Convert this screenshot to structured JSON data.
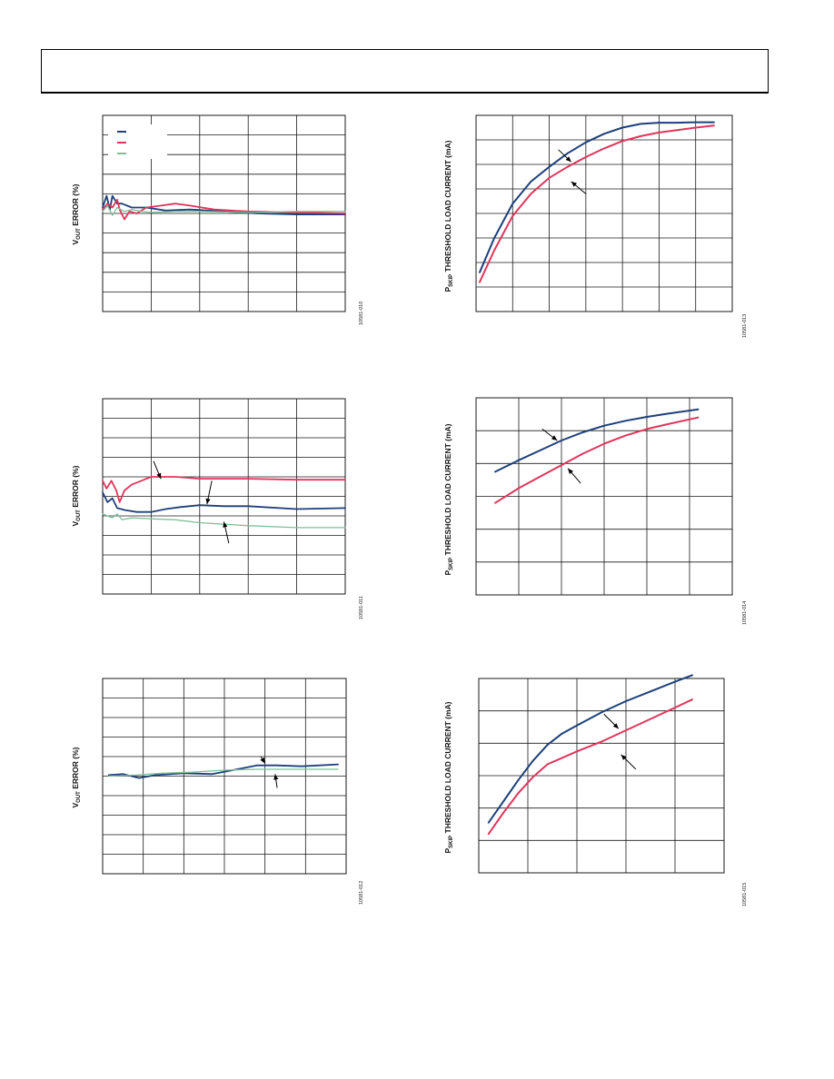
{
  "page": {
    "header_frame": ""
  },
  "colors": {
    "blue": "#1d3f7a",
    "red": "#e0345a",
    "green": "#7fbf9a",
    "grid": "#1a1a1a"
  },
  "chart_data": [
    {
      "id": "fig1",
      "type": "line",
      "fig_id": "10581-010",
      "ylabel_main": "V",
      "ylabel_sub": "OUT",
      "ylabel_tail": " ERROR (%)",
      "xlim": [
        0,
        5
      ],
      "ylim": [
        -5,
        5
      ],
      "grid": true,
      "legend": "top-left",
      "legend_swatches": [
        "blue",
        "red",
        "green"
      ],
      "series": [
        {
          "color": "blue",
          "x": [
            0,
            0.08,
            0.15,
            0.2,
            0.3,
            0.4,
            0.6,
            0.9,
            1.3,
            1.8,
            2.5,
            3.2,
            4.0,
            5.0
          ],
          "y": [
            0.3,
            0.9,
            0.2,
            0.9,
            0.5,
            0.5,
            0.3,
            0.3,
            0.15,
            0.2,
            0.1,
            0.0,
            -0.05,
            -0.05
          ]
        },
        {
          "color": "red",
          "x": [
            0,
            0.1,
            0.2,
            0.3,
            0.35,
            0.45,
            0.55,
            0.7,
            0.9,
            1.2,
            1.5,
            1.8,
            2.3,
            3.0,
            4.0,
            5.0
          ],
          "y": [
            0.2,
            0.5,
            0.3,
            0.7,
            0.2,
            -0.3,
            0.1,
            0.0,
            0.3,
            0.4,
            0.5,
            0.4,
            0.2,
            0.1,
            0.05,
            0.0
          ]
        },
        {
          "color": "green",
          "x": [
            0,
            0.1,
            0.2,
            0.3,
            0.45,
            0.6,
            0.8,
            1.0,
            1.5,
            2.0,
            3.0,
            4.0,
            5.0
          ],
          "y": [
            0.1,
            0.4,
            -0.1,
            0.3,
            0.1,
            0.2,
            0.1,
            0.05,
            0.1,
            0.1,
            0.05,
            0.1,
            0.1
          ]
        }
      ]
    },
    {
      "id": "fig2",
      "type": "line",
      "fig_id": "10581-011",
      "ylabel_main": "V",
      "ylabel_sub": "OUT",
      "ylabel_tail": " ERROR (%)",
      "xlim": [
        0,
        5
      ],
      "ylim": [
        -5,
        5
      ],
      "grid": true,
      "legend": "none",
      "series": [
        {
          "color": "red",
          "x": [
            0,
            0.08,
            0.18,
            0.28,
            0.35,
            0.45,
            0.6,
            0.8,
            1.0,
            1.5,
            2.0,
            3.0,
            4.0,
            5.0
          ],
          "y": [
            0.8,
            0.4,
            0.8,
            0.3,
            -0.3,
            0.3,
            0.6,
            0.8,
            1.0,
            1.0,
            0.9,
            0.9,
            0.85,
            0.85
          ]
        },
        {
          "color": "blue",
          "x": [
            0,
            0.1,
            0.2,
            0.3,
            0.45,
            0.7,
            1.0,
            1.3,
            1.6,
            2.0,
            2.5,
            3.0,
            4.0,
            5.0
          ],
          "y": [
            0.2,
            -0.3,
            -0.1,
            -0.6,
            -0.7,
            -0.8,
            -0.8,
            -0.65,
            -0.55,
            -0.45,
            -0.5,
            -0.5,
            -0.65,
            -0.6
          ]
        },
        {
          "color": "green",
          "x": [
            0,
            0.1,
            0.2,
            0.3,
            0.4,
            0.6,
            1.0,
            1.5,
            2.0,
            3.0,
            4.0,
            5.0
          ],
          "y": [
            -0.9,
            -1.0,
            -1.1,
            -0.9,
            -1.2,
            -1.1,
            -1.15,
            -1.2,
            -1.35,
            -1.5,
            -1.6,
            -1.6
          ]
        }
      ],
      "annotations": [
        {
          "x1": 1.05,
          "y1": 1.8,
          "x2": 1.2,
          "y2": 0.9
        },
        {
          "x1": 2.25,
          "y1": 0.8,
          "x2": 2.15,
          "y2": -0.4
        },
        {
          "x1": 2.6,
          "y1": -2.4,
          "x2": 2.5,
          "y2": -1.3
        }
      ]
    },
    {
      "id": "fig3",
      "type": "line",
      "fig_id": "10581-012",
      "ylabel_main": "V",
      "ylabel_sub": "OUT",
      "ylabel_tail": " ERROR (%)",
      "xlim": [
        0,
        6
      ],
      "ylim": [
        -5,
        5
      ],
      "grid": true,
      "legend": "none",
      "series": [
        {
          "color": "blue",
          "x": [
            0.15,
            0.5,
            0.9,
            1.3,
            2.0,
            2.7,
            3.2,
            3.8,
            4.3,
            4.9,
            5.8
          ],
          "y": [
            0.05,
            0.1,
            -0.1,
            0.05,
            0.15,
            0.1,
            0.3,
            0.55,
            0.55,
            0.5,
            0.6
          ]
        },
        {
          "color": "green",
          "x": [
            0.15,
            0.8,
            1.5,
            2.2,
            3.0,
            3.8,
            4.5,
            5.2,
            5.8
          ],
          "y": [
            0.0,
            0.05,
            0.15,
            0.2,
            0.3,
            0.35,
            0.35,
            0.35,
            0.35
          ]
        }
      ],
      "annotations": [
        {
          "x1": 3.9,
          "y1": 1.0,
          "x2": 4.0,
          "y2": 0.65
        },
        {
          "x1": 4.3,
          "y1": -0.6,
          "x2": 4.25,
          "y2": 0.1
        }
      ]
    },
    {
      "id": "fig4",
      "type": "line",
      "fig_id": "10581-013",
      "ylabel_main": "P",
      "ylabel_sub": "SKIP",
      "ylabel_tail": " THRESHOLD LOAD CURRENT (mA)",
      "xlim": [
        0,
        7
      ],
      "ylim": [
        0,
        8
      ],
      "grid": true,
      "legend": "none",
      "series": [
        {
          "color": "blue",
          "x": [
            0.1,
            0.5,
            1.0,
            1.5,
            2.0,
            2.5,
            3.0,
            3.5,
            4.0,
            4.5,
            5.0,
            5.5,
            6.0,
            6.5
          ],
          "y": [
            1.6,
            3.0,
            4.4,
            5.3,
            5.9,
            6.45,
            6.9,
            7.25,
            7.5,
            7.65,
            7.7,
            7.7,
            7.72,
            7.72
          ]
        },
        {
          "color": "red",
          "x": [
            0.1,
            0.5,
            1.0,
            1.5,
            2.0,
            2.5,
            3.0,
            3.5,
            4.0,
            4.5,
            5.0,
            5.5,
            6.0,
            6.5
          ],
          "y": [
            1.2,
            2.5,
            3.9,
            4.8,
            5.45,
            5.9,
            6.3,
            6.65,
            6.95,
            7.15,
            7.3,
            7.4,
            7.5,
            7.58
          ]
        }
      ],
      "annotations": [
        {
          "x1": 2.25,
          "y1": 6.6,
          "x2": 2.6,
          "y2": 6.1
        },
        {
          "x1": 3.0,
          "y1": 4.8,
          "x2": 2.6,
          "y2": 5.3
        }
      ]
    },
    {
      "id": "fig5",
      "type": "line",
      "fig_id": "10581-014",
      "ylabel_main": "P",
      "ylabel_sub": "SKIP",
      "ylabel_tail": " THRESHOLD LOAD CURRENT (mA)",
      "xlim": [
        0,
        6
      ],
      "ylim": [
        0,
        6
      ],
      "grid": true,
      "legend": "none",
      "series": [
        {
          "color": "blue",
          "x": [
            0.45,
            1.0,
            1.5,
            2.0,
            2.5,
            3.0,
            3.5,
            4.0,
            4.5,
            5.2
          ],
          "y": [
            3.75,
            4.1,
            4.4,
            4.7,
            4.95,
            5.15,
            5.3,
            5.42,
            5.52,
            5.65
          ]
        },
        {
          "color": "red",
          "x": [
            0.45,
            1.0,
            1.5,
            2.0,
            2.5,
            3.0,
            3.5,
            4.0,
            4.5,
            5.2
          ],
          "y": [
            2.8,
            3.25,
            3.6,
            3.95,
            4.3,
            4.6,
            4.85,
            5.05,
            5.2,
            5.4
          ]
        }
      ],
      "annotations": [
        {
          "x1": 1.55,
          "y1": 5.05,
          "x2": 1.9,
          "y2": 4.7
        },
        {
          "x1": 2.45,
          "y1": 3.4,
          "x2": 2.15,
          "y2": 3.85
        }
      ]
    },
    {
      "id": "fig6",
      "type": "line",
      "fig_id": "10581-015",
      "ylabel_main": "P",
      "ylabel_sub": "SKIP",
      "ylabel_tail": " THRESHOLD LOAD CURRENT (mA)",
      "xlim": [
        0,
        5
      ],
      "ylim": [
        0,
        6
      ],
      "grid": true,
      "legend": "none",
      "series": [
        {
          "color": "blue",
          "x": [
            0.2,
            0.5,
            0.8,
            1.1,
            1.4,
            1.7,
            2.0,
            2.5,
            3.0,
            3.5,
            4.0,
            4.35
          ],
          "y": [
            1.55,
            2.2,
            2.85,
            3.45,
            3.95,
            4.3,
            4.55,
            4.95,
            5.3,
            5.6,
            5.9,
            6.1
          ]
        },
        {
          "color": "red",
          "x": [
            0.2,
            0.5,
            0.8,
            1.1,
            1.4,
            1.7,
            2.0,
            2.5,
            3.0,
            3.5,
            4.0,
            4.35
          ],
          "y": [
            1.2,
            1.85,
            2.45,
            2.95,
            3.35,
            3.55,
            3.75,
            4.05,
            4.4,
            4.75,
            5.1,
            5.35
          ]
        }
      ],
      "annotations": [
        {
          "x1": 2.55,
          "y1": 4.9,
          "x2": 2.85,
          "y2": 4.45
        },
        {
          "x1": 3.2,
          "y1": 3.2,
          "x2": 2.9,
          "y2": 3.65
        }
      ]
    }
  ]
}
